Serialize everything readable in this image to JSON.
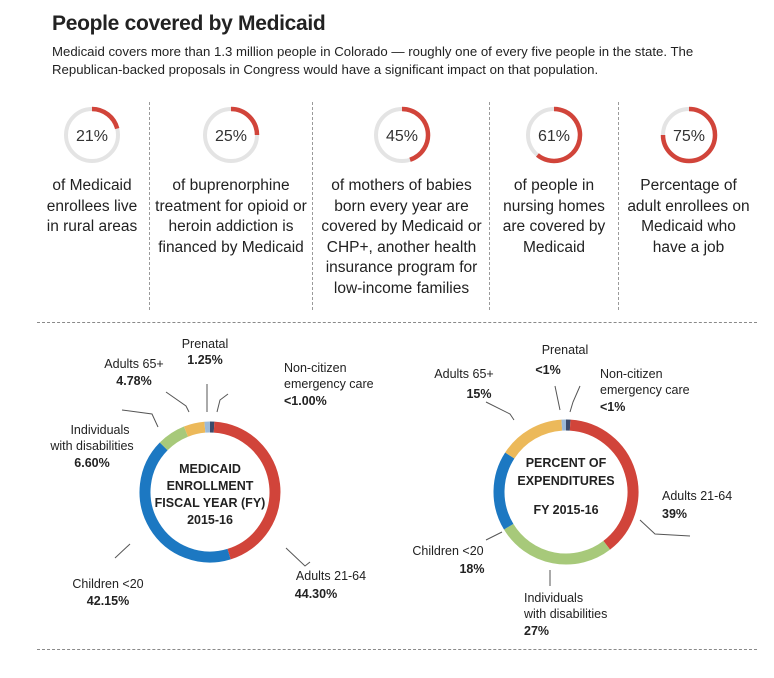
{
  "header": {
    "title": "People covered by Medicaid",
    "subtitle": "Medicaid covers more than 1.3 million people in Colorado — roughly one of every five people in the state. The Republican-backed proposals in Congress would have a significant impact on that population."
  },
  "colors": {
    "accent_red": "#d1443a",
    "track_gray": "#e4e4e4",
    "children_blue": "#1c78c2",
    "disabilities_green": "#a7c97a",
    "adults65_yellow": "#ecb95a",
    "prenatal_lightblue": "#9cbad8",
    "noncitizen_navy": "#3a4b6b"
  },
  "stats": [
    {
      "value": 21,
      "label": "21%",
      "text": "of Medicaid enrollees live in rural areas"
    },
    {
      "value": 25,
      "label": "25%",
      "text": "of buprenorphine treatment for opioid or heroin addiction is financed by Medicaid"
    },
    {
      "value": 45,
      "label": "45%",
      "text": "of mothers of babies born every year are covered by Medicaid or CHP+, another health insurance program for low-income families"
    },
    {
      "value": 61,
      "label": "61%",
      "text": "of people in nursing homes are covered by Medicaid"
    },
    {
      "value": 75,
      "label": "75%",
      "text": "Percentage of adult enrollees on Medicaid who have a job"
    }
  ],
  "chart_data": [
    {
      "type": "pie",
      "title": "MEDICAID ENROLLMENT FISCAL YEAR (FY) 2015-16",
      "segments": [
        {
          "name": "Non-citizen emergency care",
          "value": 1.0,
          "label": "<1.00%",
          "color": "#3a4b6b"
        },
        {
          "name": "Adults 21-64",
          "value": 44.3,
          "label": "44.30%",
          "color": "#d1443a"
        },
        {
          "name": "Children <20",
          "value": 42.15,
          "label": "42.15%",
          "color": "#1c78c2"
        },
        {
          "name": "Individuals with disabilities",
          "value": 6.6,
          "label": "6.60%",
          "color": "#a7c97a"
        },
        {
          "name": "Adults 65+",
          "value": 4.78,
          "label": "4.78%",
          "color": "#ecb95a"
        },
        {
          "name": "Prenatal",
          "value": 1.25,
          "label": "1.25%",
          "color": "#9cbad8"
        }
      ]
    },
    {
      "type": "pie",
      "title": "PERCENT OF EXPENDITURES FY 2015-16",
      "segments": [
        {
          "name": "Non-citizen emergency care",
          "value": 1,
          "label": "<1%",
          "color": "#3a4b6b"
        },
        {
          "name": "Adults 21-64",
          "value": 39,
          "label": "39%",
          "color": "#d1443a"
        },
        {
          "name": "Individuals with disabilities",
          "value": 27,
          "label": "27%",
          "color": "#a7c97a"
        },
        {
          "name": "Children <20",
          "value": 18,
          "label": "18%",
          "color": "#1c78c2"
        },
        {
          "name": "Adults 65+",
          "value": 15,
          "label": "15%",
          "color": "#ecb95a"
        },
        {
          "name": "Prenatal",
          "value": 1,
          "label": "<1%",
          "color": "#9cbad8"
        }
      ]
    }
  ],
  "donut_labels": {
    "enrollment": {
      "center": [
        "MEDICAID",
        "ENROLLMENT",
        "FISCAL YEAR (FY)",
        "2015-16"
      ],
      "prenatal": [
        "Prenatal",
        "1.25%"
      ],
      "adults65": [
        "Adults 65+",
        "4.78%"
      ],
      "disabilities": [
        "Individuals",
        "with disabilities",
        "6.60%"
      ],
      "children": [
        "Children <20",
        "42.15%"
      ],
      "adults21": [
        "Adults 21-64",
        "44.30%"
      ],
      "noncitizen": [
        "Non-citizen",
        "emergency care",
        "<1.00%"
      ]
    },
    "expenditures": {
      "center": [
        "PERCENT OF",
        "EXPENDITURES",
        "FY 2015-16"
      ],
      "prenatal": [
        "Prenatal",
        "<1%"
      ],
      "adults65": [
        "Adults 65+",
        "15%"
      ],
      "noncitizen": [
        "Non-citizen",
        "emergency care",
        "<1%"
      ],
      "adults21": [
        "Adults 21-64",
        "39%"
      ],
      "children": [
        "Children <20",
        "18%"
      ],
      "disabilities": [
        "Individuals",
        "with disabilities",
        "27%"
      ]
    }
  }
}
